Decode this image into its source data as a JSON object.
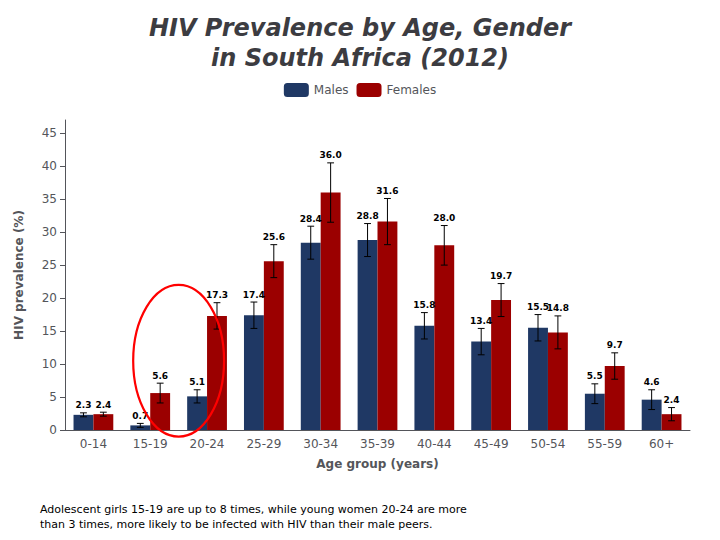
{
  "chart_data": {
    "type": "bar",
    "title": "HIV Prevalence by Age, Gender\nin South Africa (2012)",
    "xlabel": "Age group (years)",
    "ylabel": "HIV prevalence (%)",
    "categories": [
      "0-14",
      "15-19",
      "20-24",
      "25-29",
      "30-34",
      "35-39",
      "40-44",
      "45-49",
      "50-54",
      "55-59",
      "60+"
    ],
    "series": [
      {
        "name": "Males",
        "color": "#1F3864",
        "values": [
          2.3,
          0.7,
          5.1,
          17.4,
          28.4,
          28.8,
          15.8,
          13.4,
          15.5,
          5.5,
          4.6
        ],
        "errors": [
          0.3,
          0.3,
          1.0,
          2.0,
          2.5,
          2.5,
          2.0,
          2.0,
          2.0,
          1.5,
          1.5
        ],
        "value_labels": [
          "2.3",
          "0.7",
          "5.1",
          "17.4",
          "28.4",
          "28.8",
          "15.8",
          "13.4",
          "15.5",
          "5.5",
          "4.6"
        ]
      },
      {
        "name": "Females",
        "color": "#9B0000",
        "values": [
          2.4,
          5.6,
          17.3,
          25.6,
          36.0,
          31.6,
          28.0,
          19.7,
          14.8,
          9.7,
          2.4
        ],
        "errors": [
          0.3,
          1.5,
          2.0,
          2.5,
          4.5,
          3.5,
          3.0,
          2.5,
          2.5,
          2.0,
          1.0
        ],
        "value_labels": [
          "2.4",
          "5.6",
          "17.3",
          "25.6",
          "36.0",
          "31.6",
          "28.0",
          "19.7",
          "14.8",
          "9.7",
          "2.4"
        ]
      }
    ],
    "ylim": [
      0,
      47
    ],
    "yticks": [
      0,
      5,
      10,
      15,
      20,
      25,
      30,
      35,
      40,
      45
    ],
    "grid": false,
    "legend": "top",
    "data_labels": true,
    "annotations": [
      "Adolescent girls 15-19 are up to 8 times, while young women 20-24 are more\nthan 3 times, more likely to be infected with HIV than their male peers."
    ]
  }
}
